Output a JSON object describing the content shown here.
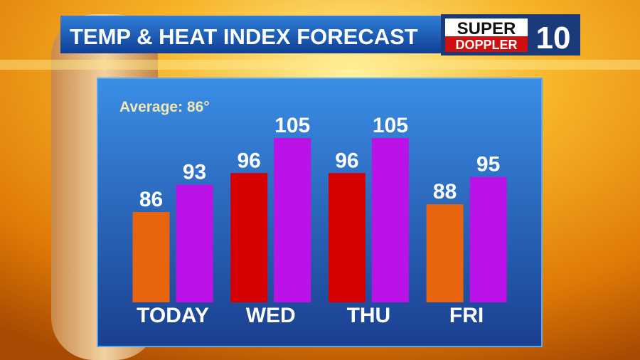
{
  "chart_data": {
    "type": "bar",
    "title": "TEMP & HEAT INDEX FORECAST",
    "annotation": "Average: 86°",
    "logo": {
      "top": "SUPER",
      "bottom": "DOPPLER",
      "number": "10"
    },
    "categories": [
      "TODAY",
      "WED",
      "THU",
      "FRI"
    ],
    "series": [
      {
        "colors": [
          "#e8640f",
          "#d60000",
          "#d60000",
          "#e8640f"
        ],
        "values": [
          86,
          96,
          96,
          88
        ]
      },
      {
        "color": "#bb12e8",
        "values": [
          93,
          105,
          105,
          95
        ]
      }
    ]
  }
}
